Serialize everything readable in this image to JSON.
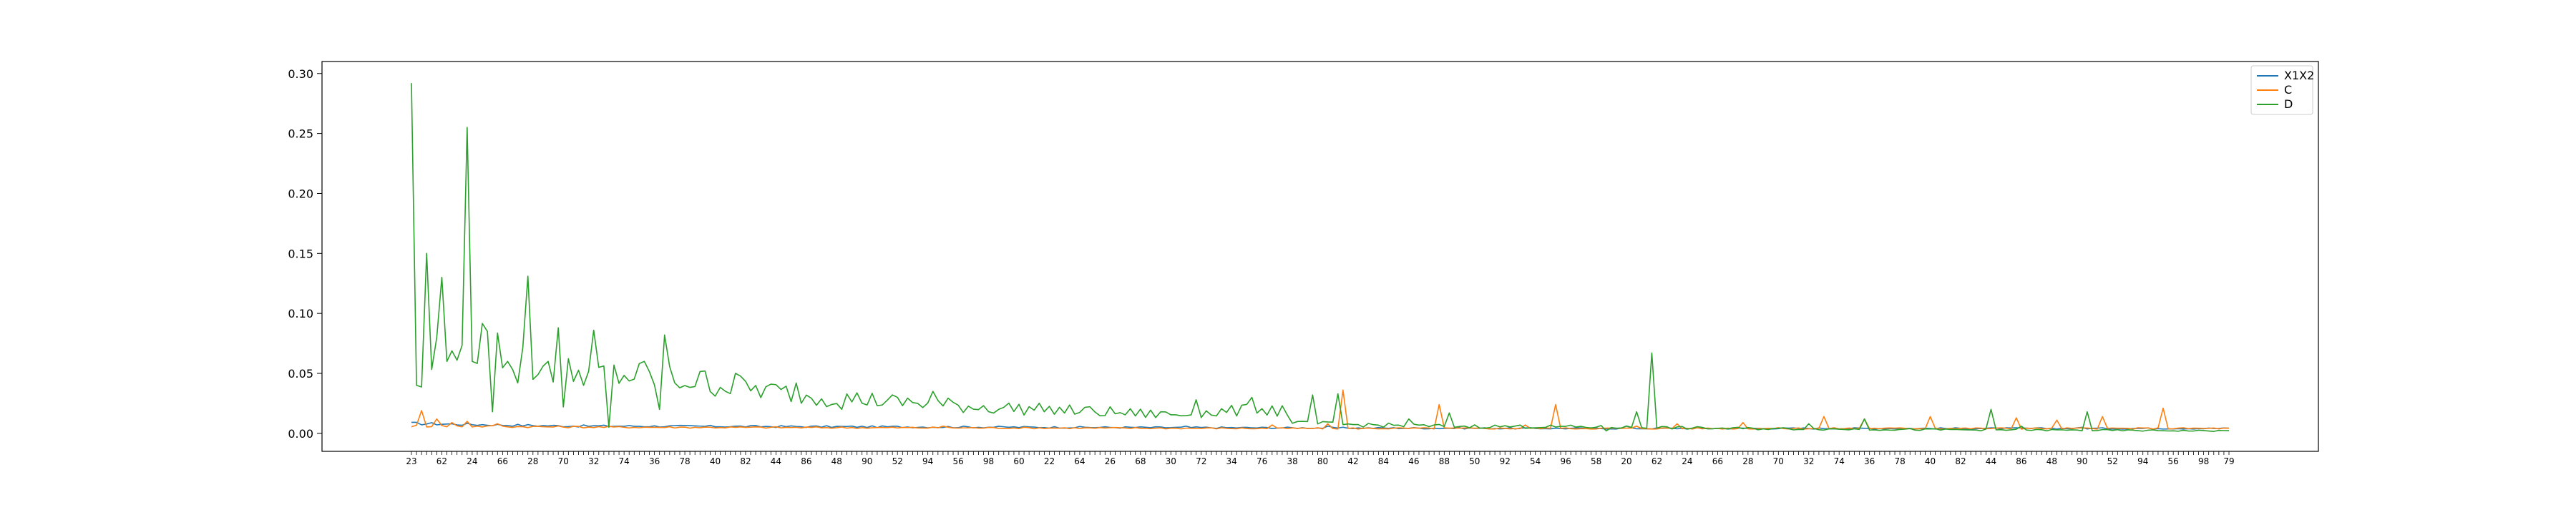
{
  "chart_data": {
    "type": "line",
    "title": "",
    "xlabel": "",
    "ylabel": "",
    "ylim": [
      -0.015,
      0.31
    ],
    "yticks": [
      0.0,
      0.05,
      0.1,
      0.15,
      0.2,
      0.25,
      0.3
    ],
    "ytick_labels": [
      "0.00",
      "0.05",
      "0.10",
      "0.15",
      "0.20",
      "0.25",
      "0.30"
    ],
    "x_count": 360,
    "x_tick_labels_note": "dense overlapping numeric category labels along the x axis",
    "x_tick_first": "23",
    "x_tick_last": "79",
    "grid": false,
    "legend_position": "top-right",
    "colors": {
      "X1X2": "#1f77b4",
      "C": "#ff7f0e",
      "D": "#2ca02c"
    },
    "series": [
      {
        "name": "X1X2",
        "baseline": [
          [
            0,
            0.008
          ],
          [
            30,
            0.006
          ],
          [
            120,
            0.005
          ],
          [
            220,
            0.004
          ],
          [
            359,
            0.004
          ]
        ],
        "spikes": [
          [
            153,
            0.006
          ],
          [
            181,
            0.006
          ],
          [
            240,
            0.006
          ],
          [
            330,
            0.005
          ]
        ]
      },
      {
        "name": "C",
        "baseline": [
          [
            0,
            0.006
          ],
          [
            40,
            0.005
          ],
          [
            170,
            0.004
          ],
          [
            359,
            0.004
          ]
        ],
        "spikes": [
          [
            2,
            0.019
          ],
          [
            5,
            0.012
          ],
          [
            8,
            0.009
          ],
          [
            11,
            0.01
          ],
          [
            17,
            0.008
          ],
          [
            105,
            0.006
          ],
          [
            170,
            0.007
          ],
          [
            181,
            0.008
          ],
          [
            184,
            0.036
          ],
          [
            203,
            0.024
          ],
          [
            220,
            0.007
          ],
          [
            226,
            0.024
          ],
          [
            242,
            0.006
          ],
          [
            250,
            0.008
          ],
          [
            263,
            0.009
          ],
          [
            279,
            0.014
          ],
          [
            287,
            0.012
          ],
          [
            300,
            0.014
          ],
          [
            317,
            0.013
          ],
          [
            325,
            0.011
          ],
          [
            334,
            0.014
          ],
          [
            346,
            0.021
          ],
          [
            362,
            0.014
          ]
        ]
      },
      {
        "name": "D",
        "baseline": [
          [
            0,
            0.03
          ],
          [
            10,
            0.08
          ],
          [
            30,
            0.05
          ],
          [
            50,
            0.045
          ],
          [
            80,
            0.03
          ],
          [
            110,
            0.022
          ],
          [
            150,
            0.015
          ],
          [
            170,
            0.02
          ],
          [
            175,
            0.008
          ],
          [
            200,
            0.006
          ],
          [
            240,
            0.005
          ],
          [
            260,
            0.004
          ],
          [
            300,
            0.003
          ],
          [
            359,
            0.002
          ]
        ],
        "spikes": [
          [
            0,
            0.292
          ],
          [
            1,
            0.04
          ],
          [
            3,
            0.15
          ],
          [
            5,
            0.08
          ],
          [
            6,
            0.13
          ],
          [
            7,
            0.06
          ],
          [
            11,
            0.255
          ],
          [
            12,
            0.06
          ],
          [
            15,
            0.085
          ],
          [
            16,
            0.018
          ],
          [
            19,
            0.06
          ],
          [
            21,
            0.042
          ],
          [
            23,
            0.131
          ],
          [
            24,
            0.045
          ],
          [
            27,
            0.06
          ],
          [
            29,
            0.088
          ],
          [
            30,
            0.022
          ],
          [
            34,
            0.04
          ],
          [
            36,
            0.086
          ],
          [
            37,
            0.055
          ],
          [
            39,
            0.005
          ],
          [
            46,
            0.06
          ],
          [
            49,
            0.02
          ],
          [
            50,
            0.082
          ],
          [
            58,
            0.052
          ],
          [
            64,
            0.05
          ],
          [
            76,
            0.042
          ],
          [
            85,
            0.02
          ],
          [
            96,
            0.03
          ],
          [
            103,
            0.035
          ],
          [
            125,
            0.018
          ],
          [
            148,
            0.018
          ],
          [
            155,
            0.028
          ],
          [
            166,
            0.03
          ],
          [
            172,
            0.023
          ],
          [
            178,
            0.032
          ],
          [
            183,
            0.033
          ],
          [
            197,
            0.012
          ],
          [
            205,
            0.017
          ],
          [
            236,
            0.002
          ],
          [
            242,
            0.018
          ],
          [
            245,
            0.067
          ],
          [
            276,
            0.008
          ],
          [
            287,
            0.012
          ],
          [
            296,
            0.004
          ],
          [
            312,
            0.02
          ],
          [
            318,
            0.006
          ],
          [
            331,
            0.018
          ]
        ]
      }
    ]
  },
  "legend": {
    "items": [
      {
        "label": "X1X2",
        "color": "#1f77b4"
      },
      {
        "label": "C",
        "color": "#ff7f0e"
      },
      {
        "label": "D",
        "color": "#2ca02c"
      }
    ]
  }
}
